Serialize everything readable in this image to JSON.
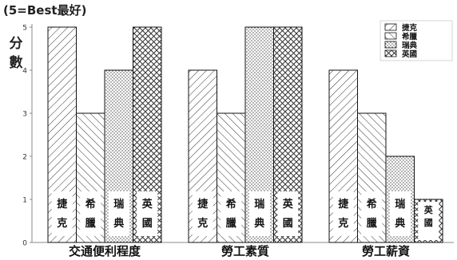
{
  "chart_data": {
    "type": "bar",
    "title": "",
    "note": "(5=Best最好)",
    "ylabel_chars": [
      "分",
      "數"
    ],
    "categories": [
      "交通便利程度",
      "勞工素質",
      "勞工薪資"
    ],
    "ylim": [
      0,
      5
    ],
    "yticks": [
      0,
      1,
      2,
      3,
      4,
      5
    ],
    "series": [
      {
        "name": "捷克",
        "bar_label": [
          "捷",
          "克"
        ],
        "values": [
          5,
          4,
          4
        ],
        "pattern": "diag-fwd"
      },
      {
        "name": "希臘",
        "bar_label": [
          "希",
          "臘"
        ],
        "values": [
          3,
          3,
          3
        ],
        "pattern": "diag-back"
      },
      {
        "name": "瑞典",
        "bar_label": [
          "瑞",
          "典"
        ],
        "values": [
          4,
          5,
          2
        ],
        "pattern": "dots"
      },
      {
        "name": "英國",
        "bar_label": [
          "英",
          "國"
        ],
        "values": [
          5,
          5,
          1
        ],
        "pattern": "crosshatch"
      }
    ],
    "legend_position": "top-right",
    "grid": false
  }
}
